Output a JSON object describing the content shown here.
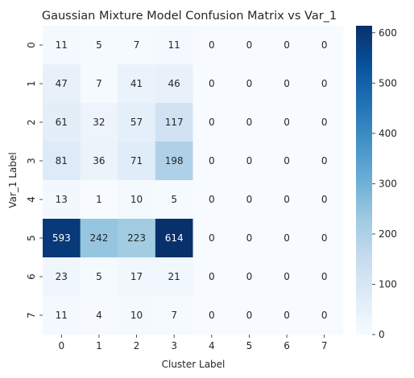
{
  "chart_data": {
    "type": "heatmap",
    "title": "Gaussian Mixture Model Confusion Matrix vs Var_1",
    "xlabel": "Cluster Label",
    "ylabel": "Var_1 Label",
    "x_categories": [
      "0",
      "1",
      "2",
      "3",
      "4",
      "5",
      "6",
      "7"
    ],
    "y_categories": [
      "0",
      "1",
      "2",
      "3",
      "4",
      "5",
      "6",
      "7"
    ],
    "values": [
      [
        11,
        5,
        7,
        11,
        0,
        0,
        0,
        0
      ],
      [
        47,
        7,
        41,
        46,
        0,
        0,
        0,
        0
      ],
      [
        61,
        32,
        57,
        117,
        0,
        0,
        0,
        0
      ],
      [
        81,
        36,
        71,
        198,
        0,
        0,
        0,
        0
      ],
      [
        13,
        1,
        10,
        5,
        0,
        0,
        0,
        0
      ],
      [
        593,
        242,
        223,
        614,
        0,
        0,
        0,
        0
      ],
      [
        23,
        5,
        17,
        21,
        0,
        0,
        0,
        0
      ],
      [
        11,
        4,
        10,
        7,
        0,
        0,
        0,
        0
      ]
    ],
    "colormap": "Blues",
    "vmin": 0,
    "vmax": 614,
    "colorbar_ticks": [
      0,
      100,
      200,
      300,
      400,
      500,
      600
    ]
  }
}
